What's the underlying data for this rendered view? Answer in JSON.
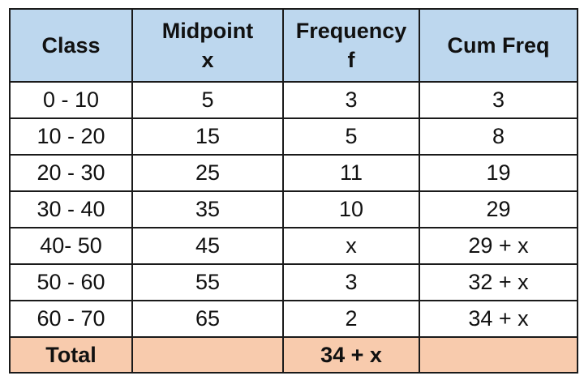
{
  "headers": [
    {
      "line1": "Class",
      "line2": ""
    },
    {
      "line1": "Midpoint",
      "line2": "x"
    },
    {
      "line1": "Frequency",
      "line2": "f"
    },
    {
      "line1": "Cum Freq",
      "line2": ""
    }
  ],
  "rows": [
    {
      "class": "0 - 10",
      "midpoint": "5",
      "frequency": "3",
      "cum_freq": "3"
    },
    {
      "class": "10 - 20",
      "midpoint": "15",
      "frequency": "5",
      "cum_freq": "8"
    },
    {
      "class": "20 - 30",
      "midpoint": "25",
      "frequency": "11",
      "cum_freq": "19"
    },
    {
      "class": "30 - 40",
      "midpoint": "35",
      "frequency": "10",
      "cum_freq": "29"
    },
    {
      "class": "40- 50",
      "midpoint": "45",
      "frequency": "x",
      "cum_freq": "29 + x"
    },
    {
      "class": "50 - 60",
      "midpoint": "55",
      "frequency": "3",
      "cum_freq": "32 + x"
    },
    {
      "class": "60 - 70",
      "midpoint": "65",
      "frequency": "2",
      "cum_freq": "34 + x"
    }
  ],
  "total": {
    "label": "Total",
    "midpoint": "",
    "frequency": "34 + x",
    "cum_freq": ""
  },
  "colors": {
    "header_bg": "#bdd7ee",
    "total_bg": "#f8cbad",
    "border": "#1a1a1a"
  }
}
